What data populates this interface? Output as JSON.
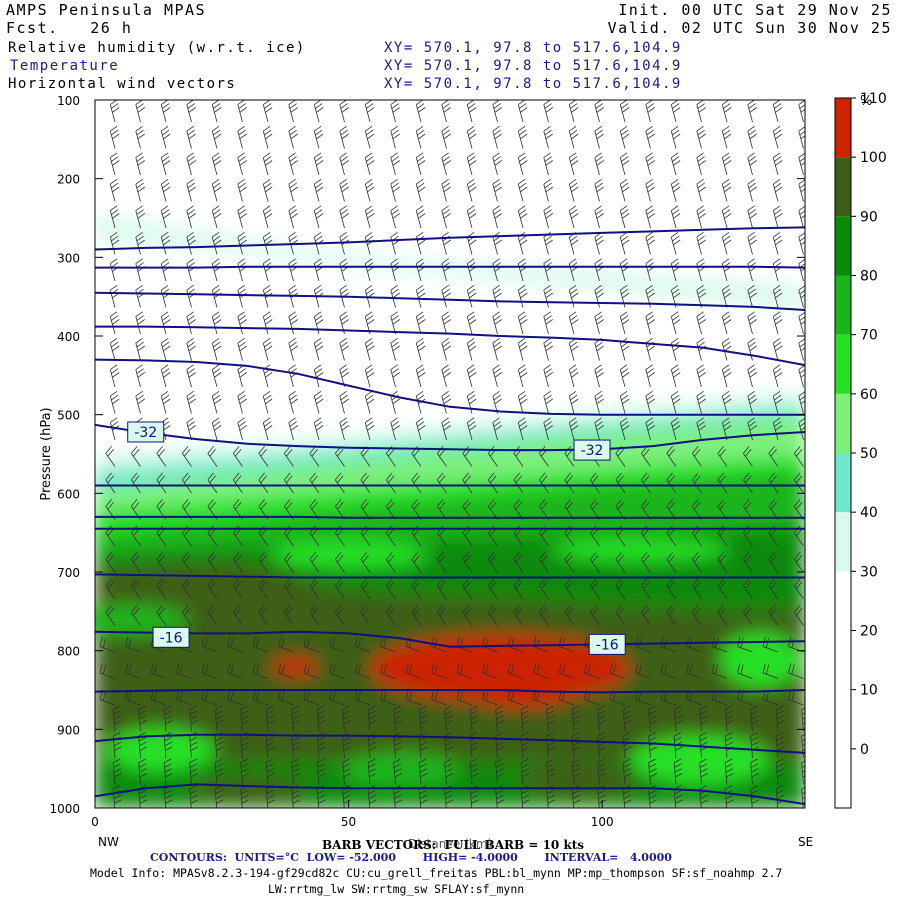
{
  "header": {
    "model_name": "AMPS Peninsula MPAS",
    "forecast": "Fcst.   26 h",
    "init": "Init. 00 UTC Sat 29 Nov 25",
    "valid": "Valid. 02 UTC Sun 30 Nov 25",
    "fields": [
      {
        "name": "Relative humidity (w.r.t. ice)",
        "xy": "XY= 570.1, 97.8 to 517.6,104.9"
      },
      {
        "name": "Temperature",
        "xy": "XY= 570.1, 97.8 to 517.6,104.9"
      },
      {
        "name": "Horizontal wind vectors",
        "xy": "XY= 570.1, 97.8 to 517.6,104.9"
      }
    ]
  },
  "colors": {
    "contour": "#101080",
    "barb": "#303030",
    "rh_scale": [
      "#ffffff",
      "#ffffff",
      "#ffffff",
      "#ffffff",
      "#d8fbeb",
      "#6ee8c8",
      "#7ef07e",
      "#26e026",
      "#1cb41c",
      "#0a8a0a",
      "#3d5e16",
      "#cc2200"
    ]
  },
  "chart_data": {
    "type": "cross-section",
    "ylabel": "Pressure (hPa)",
    "xlabel": "Distance (km)",
    "x_ticks": [
      0,
      50,
      100
    ],
    "xlim": [
      0,
      140
    ],
    "y_ticks": [
      100,
      200,
      300,
      400,
      500,
      600,
      700,
      800,
      900,
      1000
    ],
    "ylim": [
      1000,
      100
    ],
    "x_end_labels": {
      "left": "NW",
      "right": "SE"
    },
    "colorbar": {
      "unit": "%",
      "labels": [
        "0",
        "10",
        "20",
        "30",
        "40",
        "50",
        "60",
        "70",
        "80",
        "90",
        "100",
        "110"
      ]
    },
    "temperature_contour_labels": [
      {
        "label": "-32",
        "x": 10,
        "p": 522
      },
      {
        "label": "-32",
        "x": 98,
        "p": 545
      },
      {
        "label": "-16",
        "x": 15,
        "p": 783
      },
      {
        "label": "-16",
        "x": 101,
        "p": 792
      }
    ],
    "temperature_contours_p": [
      [
        290,
        288,
        287,
        285,
        283,
        281,
        278,
        275,
        273,
        271,
        269,
        267,
        265,
        263,
        262
      ],
      [
        313,
        313,
        313,
        312,
        312,
        312,
        312,
        312,
        312,
        312,
        312,
        312,
        312,
        312,
        313
      ],
      [
        345,
        346,
        347,
        348,
        349,
        350,
        352,
        354,
        356,
        357,
        358,
        359,
        361,
        363,
        367
      ],
      [
        388,
        388,
        389,
        390,
        391,
        393,
        395,
        397,
        400,
        402,
        405,
        410,
        415,
        425,
        437
      ],
      [
        430,
        431,
        433,
        438,
        448,
        463,
        478,
        490,
        496,
        499,
        500,
        500,
        500,
        500,
        500
      ],
      [
        513,
        523,
        531,
        537,
        540,
        542,
        543,
        544,
        545,
        545,
        544,
        540,
        532,
        526,
        522
      ],
      [
        590,
        590,
        590,
        590,
        590,
        590,
        590,
        590,
        590,
        590,
        590,
        590,
        590,
        590,
        590
      ],
      [
        630,
        630,
        630,
        630,
        630,
        631,
        631,
        631,
        631,
        631,
        631,
        631,
        631,
        631,
        631
      ],
      [
        645,
        645,
        645,
        645,
        645,
        645,
        645,
        645,
        645,
        645,
        645,
        645,
        645,
        645,
        645
      ],
      [
        703,
        704,
        705,
        706,
        707,
        707,
        707,
        707,
        707,
        707,
        707,
        707,
        707,
        707,
        707
      ],
      [
        776,
        777,
        778,
        778,
        776,
        778,
        784,
        795,
        794,
        793,
        792,
        791,
        790,
        789,
        788
      ],
      [
        852,
        851,
        850,
        850,
        850,
        850,
        850,
        850,
        850,
        852,
        853,
        852,
        852,
        852,
        850
      ],
      [
        915,
        909,
        907,
        907,
        908,
        908,
        909,
        910,
        912,
        914,
        916,
        918,
        922,
        926,
        930
      ],
      [
        985,
        975,
        970,
        972,
        974,
        975,
        975,
        975,
        975,
        975,
        975,
        975,
        978,
        985,
        995
      ]
    ]
  },
  "footer": {
    "barb_note": "BARB VECTORS:  FULL BARB = 10 kts",
    "contours_note": "CONTOURS:  UNITS=°C  LOW= -52.000       HIGH= -4.0000       INTERVAL=   4.0000",
    "model_info_1": "Model Info: MPASv8.2.3-194-gf29cd82c CU:cu_grell_freitas PBL:bl_mynn MP:mp_thompson SF:sf_noahmp 2.7",
    "model_info_2": "LW:rrtmg_lw SW:rrtmg_sw SFLAY:sf_mynn"
  }
}
